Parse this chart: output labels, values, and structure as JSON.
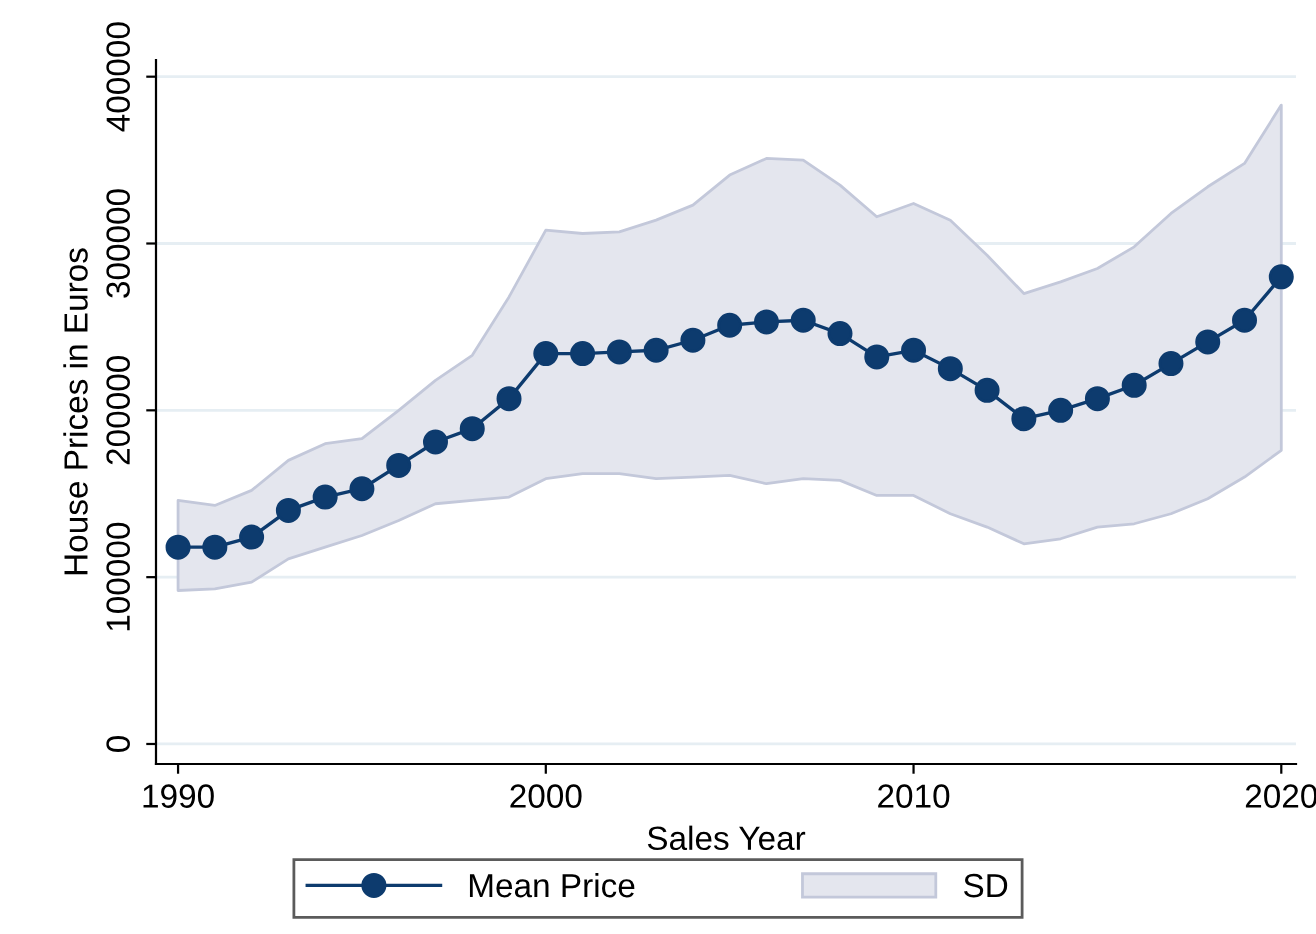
{
  "chart_data": {
    "type": "line",
    "xlabel": "Sales Year",
    "ylabel": "House Prices in Euros",
    "x": [
      1990,
      1991,
      1992,
      1993,
      1994,
      1995,
      1996,
      1997,
      1998,
      1999,
      2000,
      2001,
      2002,
      2003,
      2004,
      2005,
      2006,
      2007,
      2008,
      2009,
      2010,
      2011,
      2012,
      2013,
      2014,
      2015,
      2016,
      2017,
      2018,
      2019,
      2020
    ],
    "series": [
      {
        "name": "Mean Price",
        "color": "#0d3b6e",
        "marker": "circle",
        "values": [
          118000,
          118000,
          124000,
          140000,
          148000,
          153000,
          167000,
          181000,
          189000,
          207000,
          234000,
          234000,
          235000,
          236000,
          242000,
          251000,
          253000,
          254000,
          246000,
          232000,
          236000,
          225000,
          212000,
          195000,
          200000,
          207000,
          215000,
          228000,
          241000,
          254000,
          280000
        ],
        "lower": [
          92000,
          93000,
          97000,
          111000,
          118000,
          125000,
          134000,
          144000,
          146000,
          148000,
          159000,
          162000,
          162000,
          159000,
          160000,
          161000,
          156000,
          159000,
          158000,
          149000,
          149000,
          138000,
          130000,
          120000,
          123000,
          130000,
          132000,
          138000,
          147000,
          160000,
          176000
        ],
        "upper": [
          146000,
          143000,
          152000,
          170000,
          180000,
          183000,
          200000,
          218000,
          233000,
          268000,
          308000,
          306000,
          307000,
          314000,
          323000,
          341000,
          351000,
          350000,
          335000,
          316000,
          324000,
          314000,
          293000,
          270000,
          277000,
          285000,
          298000,
          318000,
          334000,
          348000,
          383000
        ]
      },
      {
        "name": "SD",
        "type": "area",
        "color": "#e4e6ee",
        "values": [
          null,
          null,
          null,
          null,
          null,
          null,
          null,
          null,
          null,
          null,
          null,
          null,
          null,
          null,
          null,
          null,
          null,
          null,
          null,
          null,
          null,
          null,
          null,
          null,
          null,
          null,
          null,
          null,
          null,
          null,
          null
        ]
      }
    ],
    "xlim": [
      1989.4,
      2020.4
    ],
    "xticks": [
      1990,
      2000,
      2010,
      2020
    ],
    "ylim": [
      -12000,
      410000
    ],
    "yticks": [
      0,
      100000,
      200000,
      300000,
      400000
    ],
    "grid": "y",
    "legend": "bottom"
  }
}
